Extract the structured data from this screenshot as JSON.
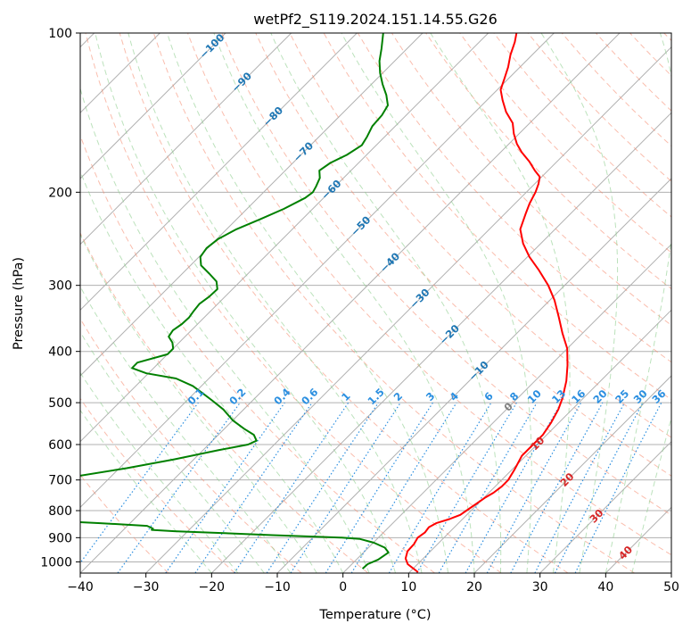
{
  "chart_data": {
    "type": "line",
    "title": "wetPf2_S119.2024.151.14.55.G26",
    "xlabel": "Temperature (°C)",
    "ylabel": "Pressure (hPa)",
    "xlim": [
      -40,
      50
    ],
    "ylim": [
      1050,
      100
    ],
    "y_scale": "log",
    "x_ticks": [
      "−40",
      "−30",
      "−20",
      "−10",
      "0",
      "10",
      "20",
      "30",
      "40",
      "50"
    ],
    "y_ticks": [
      "100",
      "200",
      "300",
      "400",
      "500",
      "600",
      "700",
      "800",
      "900",
      "1000"
    ],
    "grid": true,
    "skew": true,
    "series": [
      {
        "name": "",
        "color": "#ff0000",
        "points": [
          [
            11.3,
            1046
          ],
          [
            8.5,
            1010
          ],
          [
            7.3,
            985
          ],
          [
            6.5,
            955
          ],
          [
            6.4,
            925
          ],
          [
            6.0,
            900
          ],
          [
            6.3,
            880
          ],
          [
            6.1,
            860
          ],
          [
            6.6,
            845
          ],
          [
            8.0,
            830
          ],
          [
            9.0,
            815
          ],
          [
            9.3,
            800
          ],
          [
            9.7,
            780
          ],
          [
            10.2,
            755
          ],
          [
            10.7,
            740
          ],
          [
            11.0,
            720
          ],
          [
            11.0,
            700
          ],
          [
            10.4,
            670
          ],
          [
            9.4,
            630
          ],
          [
            9.4,
            600
          ],
          [
            9.4,
            575
          ],
          [
            8.8,
            545
          ],
          [
            7.9,
            515
          ],
          [
            6.8,
            490
          ],
          [
            4.8,
            455
          ],
          [
            2.6,
            425
          ],
          [
            0.0,
            395
          ],
          [
            -3.0,
            370
          ],
          [
            -6.0,
            345
          ],
          [
            -9.3,
            320
          ],
          [
            -12.5,
            300
          ],
          [
            -16.4,
            280
          ],
          [
            -19.7,
            265
          ],
          [
            -22.7,
            250
          ],
          [
            -25.3,
            235
          ],
          [
            -26.8,
            220
          ],
          [
            -27.8,
            210
          ],
          [
            -28.6,
            200
          ],
          [
            -29.4,
            193
          ],
          [
            -30.3,
            187
          ],
          [
            -32.0,
            182
          ],
          [
            -34.2,
            175
          ],
          [
            -36.8,
            168
          ],
          [
            -38.8,
            162
          ],
          [
            -40.8,
            155
          ],
          [
            -42.6,
            148
          ],
          [
            -45.3,
            141
          ],
          [
            -47.6,
            134
          ],
          [
            -49.5,
            128
          ],
          [
            -50.6,
            122
          ],
          [
            -51.8,
            116
          ],
          [
            -53.3,
            110
          ],
          [
            -54.6,
            104
          ],
          [
            -55.7,
            100
          ]
        ]
      },
      {
        "name": "",
        "color": "#008000",
        "points": [
          [
            2.3,
            1030
          ],
          [
            2.4,
            1010
          ],
          [
            3.3,
            990
          ],
          [
            3.8,
            960
          ],
          [
            2.5,
            940
          ],
          [
            0.1,
            920
          ],
          [
            -2.6,
            905
          ],
          [
            -5.6,
            900
          ],
          [
            -16.5,
            890
          ],
          [
            -26.5,
            880
          ],
          [
            -32.0,
            875
          ],
          [
            -35.7,
            870
          ],
          [
            -35.7,
            865
          ],
          [
            -37.0,
            855
          ],
          [
            -44.5,
            845
          ],
          [
            -58.0,
            830
          ],
          [
            -62.0,
            825
          ],
          [
            -70.0,
            805
          ],
          [
            -75.0,
            795
          ],
          [
            -80.0,
            790
          ],
          [
            -85.0,
            785
          ],
          [
            -90.0,
            780
          ],
          [
            -110.0,
            765
          ],
          [
            -100.0,
            715
          ],
          [
            -80.0,
            712
          ],
          [
            -64.4,
            709
          ],
          [
            -56.9,
            695
          ],
          [
            -48.9,
            665
          ],
          [
            -43.0,
            640
          ],
          [
            -37.7,
            615
          ],
          [
            -34.0,
            600
          ],
          [
            -33.3,
            590
          ],
          [
            -34.6,
            575
          ],
          [
            -37.0,
            560
          ],
          [
            -40.0,
            540
          ],
          [
            -43.1,
            515
          ],
          [
            -46.2,
            495
          ],
          [
            -48.7,
            480
          ],
          [
            -51.3,
            465
          ],
          [
            -55.0,
            450
          ],
          [
            -60.3,
            440
          ],
          [
            -63.3,
            430
          ],
          [
            -63.3,
            420
          ],
          [
            -60.0,
            405
          ],
          [
            -60.0,
            395
          ],
          [
            -61.0,
            385
          ],
          [
            -62.5,
            375
          ],
          [
            -62.8,
            365
          ],
          [
            -62.4,
            355
          ],
          [
            -62.3,
            345
          ],
          [
            -62.6,
            335
          ],
          [
            -62.8,
            325
          ],
          [
            -62.4,
            315
          ],
          [
            -62.3,
            305
          ],
          [
            -63.6,
            295
          ],
          [
            -65.9,
            285
          ],
          [
            -68.4,
            275
          ],
          [
            -69.8,
            265
          ],
          [
            -70.2,
            255
          ],
          [
            -69.8,
            245
          ],
          [
            -68.5,
            235
          ],
          [
            -66.4,
            225
          ],
          [
            -64.4,
            215
          ],
          [
            -62.8,
            205
          ],
          [
            -62.5,
            200
          ],
          [
            -62.9,
            195
          ],
          [
            -63.6,
            188
          ],
          [
            -64.8,
            182
          ],
          [
            -64.3,
            176
          ],
          [
            -63.0,
            170
          ],
          [
            -62.2,
            163
          ],
          [
            -62.7,
            157
          ],
          [
            -63.5,
            150
          ],
          [
            -63.7,
            143
          ],
          [
            -64.3,
            137
          ],
          [
            -66.1,
            131
          ],
          [
            -68.3,
            125
          ],
          [
            -70.4,
            119
          ],
          [
            -72.3,
            113
          ],
          [
            -73.9,
            107
          ],
          [
            -76.0,
            100
          ]
        ]
      }
    ],
    "isotherm_labels": [
      "−100",
      "−90",
      "−80",
      "−70",
      "−60",
      "−50",
      "−40",
      "−30",
      "−20",
      "−10",
      "0",
      "10",
      "20",
      "30",
      "40"
    ],
    "mixing_ratio_labels": [
      "0.1",
      "0.2",
      "0.4",
      "0.6",
      "1",
      "1.5",
      "2",
      "3",
      "4",
      "6",
      "8",
      "10",
      "13",
      "16",
      "20",
      "25",
      "30",
      "36"
    ],
    "colors": {
      "temperature": "#ff0000",
      "dewpoint": "#008000",
      "dry_adiabat": "#f5876a",
      "moist_adiabat": "#8fcf8f",
      "mixing_ratio": "#2b8fe0",
      "isotherm_label": "#1f77b4",
      "isotherm_label_warm": "#d62728",
      "isotherm_zero": "#7f7f7f",
      "grid": "#b0b0b0"
    }
  }
}
